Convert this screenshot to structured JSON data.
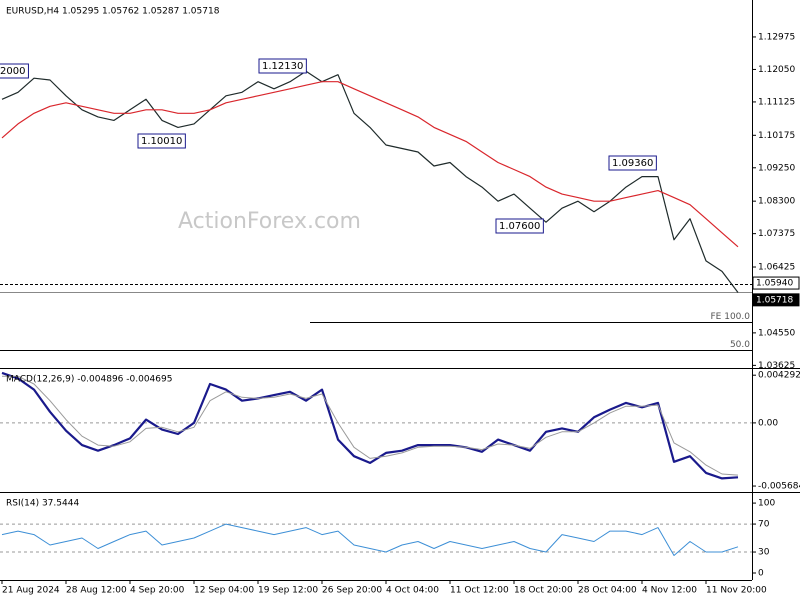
{
  "chart_data": [
    {
      "type": "line",
      "title": "EURUSD,H4 1.05295 1.05762 1.05287 1.05718",
      "watermark": "ActionForex.com",
      "categories": [
        "21 Aug 2024",
        null,
        null,
        null,
        "28 Aug 12:00",
        null,
        null,
        null,
        "4 Sep 20:00",
        null,
        null,
        null,
        "12 Sep 04:00",
        null,
        null,
        null,
        "19 Sep 12:00",
        null,
        null,
        null,
        "26 Sep 20:00",
        null,
        null,
        null,
        "4 Oct 04:00",
        null,
        null,
        null,
        "11 Oct 12:00",
        null,
        null,
        null,
        "18 Oct 20:00",
        null,
        null,
        null,
        "28 Oct 04:00",
        null,
        null,
        null,
        "4 Nov 12:00",
        null,
        null,
        null,
        "11 Nov 20:00",
        null,
        null
      ],
      "series": [
        {
          "name": "EURUSD",
          "color": "#1f2b2b",
          "width": 1.2,
          "values": [
            1.112,
            1.114,
            1.118,
            1.1175,
            1.113,
            1.109,
            1.107,
            1.106,
            1.109,
            1.112,
            1.106,
            1.104,
            1.105,
            1.109,
            1.113,
            1.114,
            1.117,
            1.115,
            1.117,
            1.12,
            1.117,
            1.119,
            1.108,
            1.104,
            1.099,
            1.098,
            1.097,
            1.093,
            1.094,
            1.09,
            1.087,
            1.083,
            1.085,
            1.081,
            1.077,
            1.081,
            1.083,
            1.08,
            1.083,
            1.087,
            1.09,
            1.09,
            1.072,
            1.078,
            1.066,
            1.063,
            1.057
          ]
        },
        {
          "name": "MA",
          "color": "#d9262c",
          "width": 1.2,
          "values": [
            1.101,
            1.105,
            1.108,
            1.11,
            1.111,
            1.11,
            1.109,
            1.108,
            1.108,
            1.109,
            1.109,
            1.108,
            1.108,
            1.109,
            1.111,
            1.112,
            1.113,
            1.114,
            1.115,
            1.116,
            1.117,
            1.117,
            1.115,
            1.113,
            1.111,
            1.109,
            1.107,
            1.104,
            1.102,
            1.1,
            1.097,
            1.094,
            1.092,
            1.09,
            1.087,
            1.085,
            1.084,
            1.083,
            1.083,
            1.084,
            1.085,
            1.086,
            1.084,
            1.082,
            1.078,
            1.074,
            1.07
          ]
        }
      ],
      "ylim": [
        1.0355,
        1.1397
      ],
      "yticks": [
        1.12975,
        {
          "value": 1.1205,
          "label": "1.12050"
        },
        1.11125,
        1.10175,
        {
          "value": 1.0925,
          "label": "1.09250"
        },
        {
          "value": 1.083,
          "label": "1.08300"
        },
        1.07375,
        1.06425,
        {
          "value": 1.055,
          "label": "1.05500"
        },
        {
          "value": 1.0455,
          "label": "1.04550"
        },
        1.03625
      ],
      "price_labels": [
        {
          "value": 1.0594,
          "label": "1.05940"
        },
        {
          "value": 1.05718,
          "label": "1.05718"
        }
      ],
      "fib_levels": [
        {
          "value": 1.0485,
          "label": "FE 100.0"
        },
        {
          "value": 1.0407,
          "label": "50.0"
        }
      ],
      "annotations": [
        "2000",
        "1.12130",
        "1.10010",
        "1.07600",
        "1.09360"
      ]
    },
    {
      "type": "line",
      "title": "MACD(12,26,9) -0.004896 -0.004695",
      "series": [
        {
          "name": "MACD",
          "color": "#1a1a8c",
          "width": 2.2,
          "values": [
            0.0045,
            0.004,
            0.003,
            0.001,
            -0.0007,
            -0.002,
            -0.0025,
            -0.002,
            -0.0014,
            0.0003,
            -0.0006,
            -0.001,
            0.0,
            0.0035,
            0.003,
            0.002,
            0.0022,
            0.0025,
            0.0028,
            0.002,
            0.003,
            -0.0015,
            -0.003,
            -0.0036,
            -0.0027,
            -0.0025,
            -0.002,
            -0.002,
            -0.002,
            -0.0022,
            -0.0026,
            -0.0015,
            -0.002,
            -0.0025,
            -0.0008,
            -0.0005,
            -0.0008,
            0.0005,
            0.0012,
            0.0018,
            0.0014,
            0.0018,
            -0.0035,
            -0.003,
            -0.0045,
            -0.005,
            -0.0049
          ]
        },
        {
          "name": "Signal",
          "color": "#9a9a9a",
          "width": 1,
          "values": [
            0.0042,
            0.0042,
            0.0035,
            0.002,
            0.0003,
            -0.0012,
            -0.002,
            -0.0021,
            -0.0017,
            -0.0005,
            -0.0004,
            -0.0008,
            -0.0004,
            0.002,
            0.0028,
            0.0023,
            0.0022,
            0.0023,
            0.0026,
            0.0022,
            0.0026,
            0.0,
            -0.0022,
            -0.0032,
            -0.003,
            -0.0027,
            -0.0022,
            -0.0021,
            -0.0021,
            -0.0022,
            -0.0024,
            -0.0019,
            -0.002,
            -0.0023,
            -0.0013,
            -0.0008,
            -0.0008,
            0.0,
            0.0009,
            0.0015,
            0.0015,
            0.0016,
            -0.0018,
            -0.0026,
            -0.0038,
            -0.0046,
            -0.0047
          ]
        }
      ],
      "ylim": [
        -0.00622,
        0.00476
      ],
      "yticks": [
        0.004292,
        {
          "value": 0,
          "label": "0.00"
        },
        -0.005684
      ],
      "levels": [
        0
      ]
    },
    {
      "type": "line",
      "title": "RSI(14) 37.5444",
      "series": [
        {
          "name": "RSI",
          "color": "#3d8fd6",
          "width": 1,
          "values": [
            55,
            60,
            55,
            40,
            45,
            50,
            35,
            45,
            55,
            60,
            40,
            45,
            50,
            60,
            70,
            65,
            60,
            55,
            60,
            65,
            55,
            60,
            40,
            35,
            30,
            40,
            45,
            35,
            45,
            40,
            35,
            40,
            45,
            35,
            30,
            55,
            50,
            45,
            60,
            60,
            55,
            65,
            25,
            45,
            30,
            30,
            37.5
          ]
        }
      ],
      "ylim": [
        -10,
        113
      ],
      "yticks": [
        100,
        70,
        30,
        0
      ],
      "levels": [
        70,
        30
      ]
    }
  ]
}
